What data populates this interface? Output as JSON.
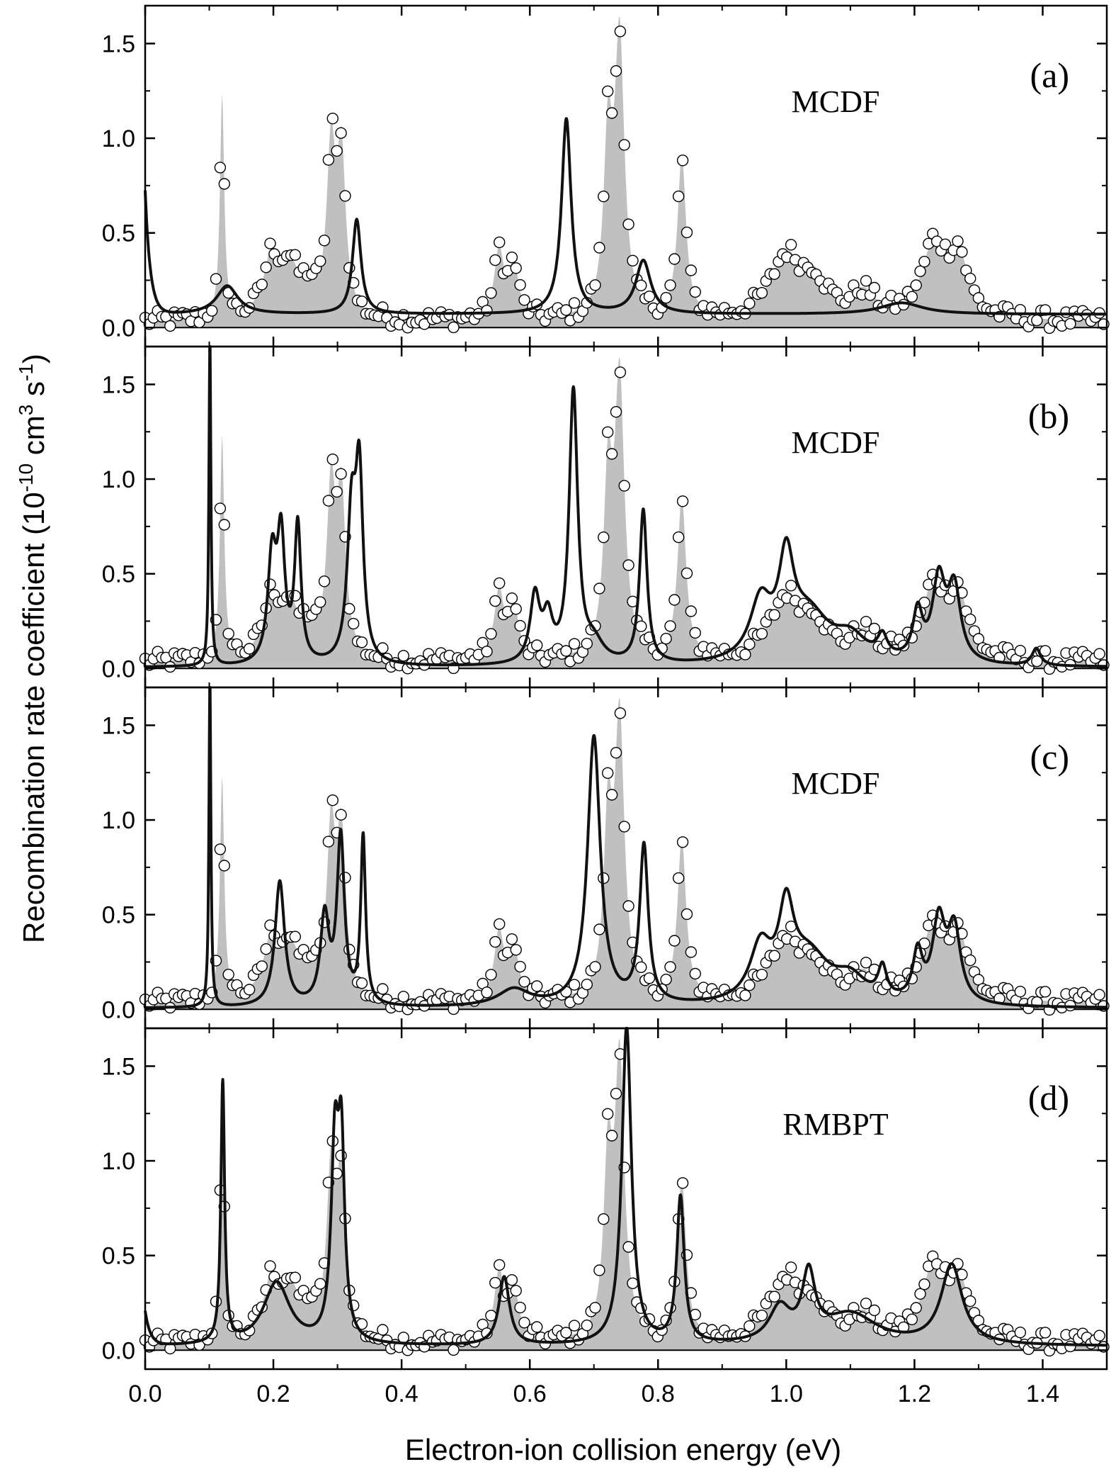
{
  "chart_data": {
    "type": "line",
    "layout": "4 vertically stacked panels sharing the x axis",
    "xlabel": "Electron-ion collision energy (eV)",
    "ylabel": "Recombination rate coefficient (10-10 cm3 s-1)",
    "ylabel_parts": {
      "pre": "Recombination rate coefficient (10",
      "exp1": "-10",
      "mid": " cm",
      "exp2": "3",
      "mid2": " s",
      "exp3": "-1",
      "post": ")"
    },
    "xlim": [
      0,
      1.5
    ],
    "ylim": [
      -0.1,
      1.7
    ],
    "xticks": [
      0.0,
      0.2,
      0.4,
      0.6,
      0.8,
      1.0,
      1.2,
      1.4
    ],
    "xtick_labels": [
      "0.0",
      "0.2",
      "0.4",
      "0.6",
      "0.8",
      "1.0",
      "1.2",
      "1.4"
    ],
    "yticks": [
      0.0,
      0.5,
      1.0,
      1.5
    ],
    "ytick_labels": [
      "0.0",
      "0.5",
      "1.0",
      "1.5"
    ],
    "experiment": {
      "name": "experiment",
      "style": "open circles over grey filled area",
      "fill_color": "#c0c0c0",
      "baseline": 0.03,
      "noise_amp": 0.05,
      "peaks": [
        {
          "e": 0.12,
          "a": 1.18,
          "w": 0.004
        },
        {
          "e": 0.197,
          "a": 0.3,
          "w": 0.015
        },
        {
          "e": 0.225,
          "a": 0.25,
          "w": 0.018
        },
        {
          "e": 0.255,
          "a": 0.12,
          "w": 0.013
        },
        {
          "e": 0.29,
          "a": 0.86,
          "w": 0.008
        },
        {
          "e": 0.306,
          "a": 0.83,
          "w": 0.008
        },
        {
          "e": 0.552,
          "a": 0.36,
          "w": 0.009
        },
        {
          "e": 0.575,
          "a": 0.28,
          "w": 0.009
        },
        {
          "e": 0.722,
          "a": 0.9,
          "w": 0.008
        },
        {
          "e": 0.74,
          "a": 1.45,
          "w": 0.009
        },
        {
          "e": 0.837,
          "a": 0.85,
          "w": 0.008
        },
        {
          "e": 1.0,
          "a": 0.33,
          "w": 0.03
        },
        {
          "e": 1.045,
          "a": 0.17,
          "w": 0.022
        },
        {
          "e": 1.12,
          "a": 0.13,
          "w": 0.022
        },
        {
          "e": 1.23,
          "a": 0.38,
          "w": 0.022
        },
        {
          "e": 1.268,
          "a": 0.32,
          "w": 0.018
        }
      ]
    },
    "panels": [
      {
        "tag": "(a)",
        "method": "MCDF",
        "theory": {
          "baseline": 0.07,
          "edge_rise": {
            "a": 0.65,
            "tau": 0.008
          },
          "peaks": [
            {
              "e": 0.128,
              "a": 0.15,
              "w": 0.02
            },
            {
              "e": 0.33,
              "a": 0.5,
              "w": 0.008
            },
            {
              "e": 0.657,
              "a": 1.03,
              "w": 0.009
            },
            {
              "e": 0.777,
              "a": 0.28,
              "w": 0.014
            },
            {
              "e": 1.18,
              "a": 0.06,
              "w": 0.04
            }
          ]
        }
      },
      {
        "tag": "(b)",
        "method": "MCDF",
        "theory": {
          "baseline": 0.005,
          "edge_rise": {
            "a": 0.0,
            "tau": 0.01
          },
          "peaks": [
            {
              "e": 0.101,
              "a": 1.75,
              "w": 0.0018
            },
            {
              "e": 0.198,
              "a": 0.55,
              "w": 0.008
            },
            {
              "e": 0.212,
              "a": 0.63,
              "w": 0.007
            },
            {
              "e": 0.238,
              "a": 0.72,
              "w": 0.006
            },
            {
              "e": 0.322,
              "a": 0.75,
              "w": 0.008
            },
            {
              "e": 0.334,
              "a": 0.95,
              "w": 0.007
            },
            {
              "e": 0.608,
              "a": 0.35,
              "w": 0.009
            },
            {
              "e": 0.628,
              "a": 0.22,
              "w": 0.009
            },
            {
              "e": 0.668,
              "a": 1.43,
              "w": 0.008
            },
            {
              "e": 0.7,
              "a": 0.1,
              "w": 0.018
            },
            {
              "e": 0.777,
              "a": 0.81,
              "w": 0.007
            },
            {
              "e": 0.96,
              "a": 0.3,
              "w": 0.02
            },
            {
              "e": 1.0,
              "a": 0.47,
              "w": 0.014
            },
            {
              "e": 1.035,
              "a": 0.25,
              "w": 0.04
            },
            {
              "e": 1.1,
              "a": 0.12,
              "w": 0.03
            },
            {
              "e": 1.15,
              "a": 0.11,
              "w": 0.009
            },
            {
              "e": 1.205,
              "a": 0.25,
              "w": 0.009
            },
            {
              "e": 1.238,
              "a": 0.42,
              "w": 0.012
            },
            {
              "e": 1.262,
              "a": 0.38,
              "w": 0.012
            },
            {
              "e": 1.39,
              "a": 0.09,
              "w": 0.008
            }
          ]
        }
      },
      {
        "tag": "(c)",
        "method": "MCDF",
        "theory": {
          "baseline": 0.005,
          "edge_rise": {
            "a": 0.0,
            "tau": 0.01
          },
          "peaks": [
            {
              "e": 0.101,
              "a": 1.75,
              "w": 0.0018
            },
            {
              "e": 0.21,
              "a": 0.66,
              "w": 0.009
            },
            {
              "e": 0.28,
              "a": 0.46,
              "w": 0.008
            },
            {
              "e": 0.305,
              "a": 0.88,
              "w": 0.007
            },
            {
              "e": 0.34,
              "a": 0.88,
              "w": 0.0045
            },
            {
              "e": 0.575,
              "a": 0.09,
              "w": 0.03
            },
            {
              "e": 0.7,
              "a": 1.42,
              "w": 0.012
            },
            {
              "e": 0.778,
              "a": 0.83,
              "w": 0.008
            },
            {
              "e": 0.96,
              "a": 0.28,
              "w": 0.02
            },
            {
              "e": 1.0,
              "a": 0.42,
              "w": 0.014
            },
            {
              "e": 1.035,
              "a": 0.25,
              "w": 0.04
            },
            {
              "e": 1.1,
              "a": 0.12,
              "w": 0.03
            },
            {
              "e": 1.15,
              "a": 0.16,
              "w": 0.008
            },
            {
              "e": 1.205,
              "a": 0.25,
              "w": 0.009
            },
            {
              "e": 1.238,
              "a": 0.42,
              "w": 0.012
            },
            {
              "e": 1.262,
              "a": 0.38,
              "w": 0.012
            }
          ]
        }
      },
      {
        "tag": "(d)",
        "method": "RMBPT",
        "theory": {
          "baseline": 0.02,
          "edge_rise": {
            "a": 0.18,
            "tau": 0.008
          },
          "peaks": [
            {
              "e": 0.121,
              "a": 1.38,
              "w": 0.0035
            },
            {
              "e": 0.205,
              "a": 0.33,
              "w": 0.025
            },
            {
              "e": 0.296,
              "a": 1.0,
              "w": 0.007
            },
            {
              "e": 0.306,
              "a": 0.95,
              "w": 0.006
            },
            {
              "e": 0.56,
              "a": 0.36,
              "w": 0.01
            },
            {
              "e": 0.751,
              "a": 1.68,
              "w": 0.009
            },
            {
              "e": 0.835,
              "a": 0.77,
              "w": 0.007
            },
            {
              "e": 0.99,
              "a": 0.18,
              "w": 0.02
            },
            {
              "e": 1.035,
              "a": 0.34,
              "w": 0.012
            },
            {
              "e": 1.1,
              "a": 0.16,
              "w": 0.05
            },
            {
              "e": 1.258,
              "a": 0.42,
              "w": 0.02
            }
          ]
        }
      }
    ]
  }
}
